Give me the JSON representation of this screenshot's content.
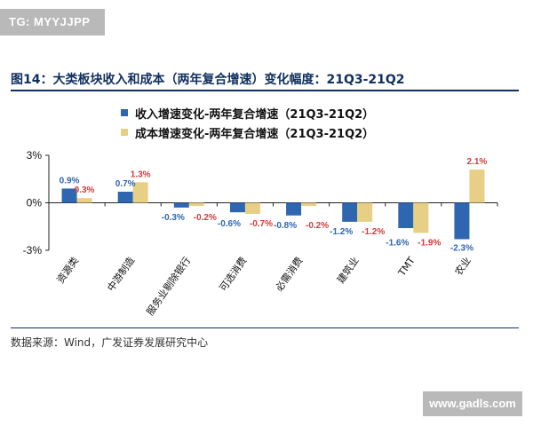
{
  "watermark_top": "TG: MYYJJPP",
  "watermark_bottom": "www.gadls.com",
  "figure_title": "图14：大类板块收入和成本（两年复合增速）变化幅度：21Q3-21Q2",
  "source_note": "数据来源：Wind，广发证券发展研究中心",
  "colors": {
    "revenue": "#2e66b0",
    "cost": "#e8cf86",
    "revenue_label": "#2e66b0",
    "cost_label": "#d43a3a",
    "title": "#0f2f5e",
    "axis": "#222222"
  },
  "chart_data": {
    "type": "bar",
    "categories": [
      "资源类",
      "中游制造",
      "服务业剔除银行",
      "可选消费",
      "必需消费",
      "建筑业",
      "TMT",
      "农业"
    ],
    "series": [
      {
        "name": "收入增速变化-两年复合增速（21Q3-21Q2）",
        "values": [
          0.9,
          0.7,
          -0.3,
          -0.6,
          -0.8,
          -1.2,
          -1.6,
          -2.3
        ]
      },
      {
        "name": "成本增速变化-两年复合增速（21Q3-21Q2）",
        "values": [
          0.3,
          1.3,
          -0.2,
          -0.7,
          -0.2,
          -1.2,
          -1.9,
          2.1
        ]
      }
    ],
    "data_labels": [
      [
        "0.9%",
        "0.7%",
        "-0.3%",
        "-0.6%",
        "-0.8%",
        "-1.2%",
        "-1.6%",
        "-2.3%"
      ],
      [
        "0.3%",
        "1.3%",
        "-0.2%",
        "-0.7%",
        "-0.2%",
        "-1.2%",
        "-1.9%",
        "2.1%"
      ]
    ],
    "y_ticks": [
      3,
      0,
      -3
    ],
    "y_tick_labels": [
      "3%",
      "0%",
      "-3%"
    ],
    "ylim": [
      -3,
      3
    ],
    "grid": false,
    "legend_position": "top-left"
  }
}
